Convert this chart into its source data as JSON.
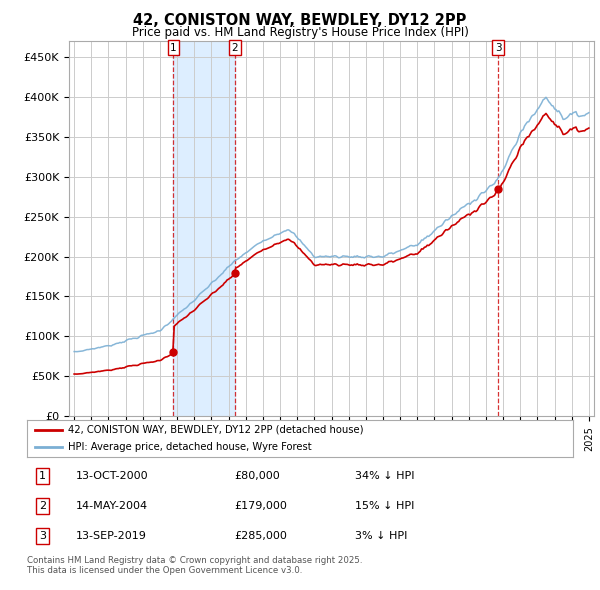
{
  "title": "42, CONISTON WAY, BEWDLEY, DY12 2PP",
  "subtitle": "Price paid vs. HM Land Registry's House Price Index (HPI)",
  "sale_dates_decimal": [
    2000.79,
    2004.37,
    2019.71
  ],
  "sale_prices": [
    80000,
    179000,
    285000
  ],
  "sale_labels": [
    "1",
    "2",
    "3"
  ],
  "sale_info": [
    {
      "label": "1",
      "date": "13-OCT-2000",
      "price": "£80,000",
      "hpi_diff": "34% ↓ HPI"
    },
    {
      "label": "2",
      "date": "14-MAY-2004",
      "price": "£179,000",
      "hpi_diff": "15% ↓ HPI"
    },
    {
      "label": "3",
      "date": "13-SEP-2019",
      "price": "£285,000",
      "hpi_diff": "3% ↓ HPI"
    }
  ],
  "legend_line1": "42, CONISTON WAY, BEWDLEY, DY12 2PP (detached house)",
  "legend_line2": "HPI: Average price, detached house, Wyre Forest",
  "footer": "Contains HM Land Registry data © Crown copyright and database right 2025.\nThis data is licensed under the Open Government Licence v3.0.",
  "ylabel_ticks": [
    "£0",
    "£50K",
    "£100K",
    "£150K",
    "£200K",
    "£250K",
    "£300K",
    "£350K",
    "£400K",
    "£450K"
  ],
  "ytick_values": [
    0,
    50000,
    100000,
    150000,
    200000,
    250000,
    300000,
    350000,
    400000,
    450000
  ],
  "xlim_start": 1994.7,
  "xlim_end": 2025.3,
  "ylim_top": 470000,
  "price_line_color": "#cc0000",
  "hpi_line_color": "#7bafd4",
  "vline_color": "#cc0000",
  "shade_color": "#ddeeff",
  "background_color": "#ffffff",
  "grid_color": "#cccccc"
}
